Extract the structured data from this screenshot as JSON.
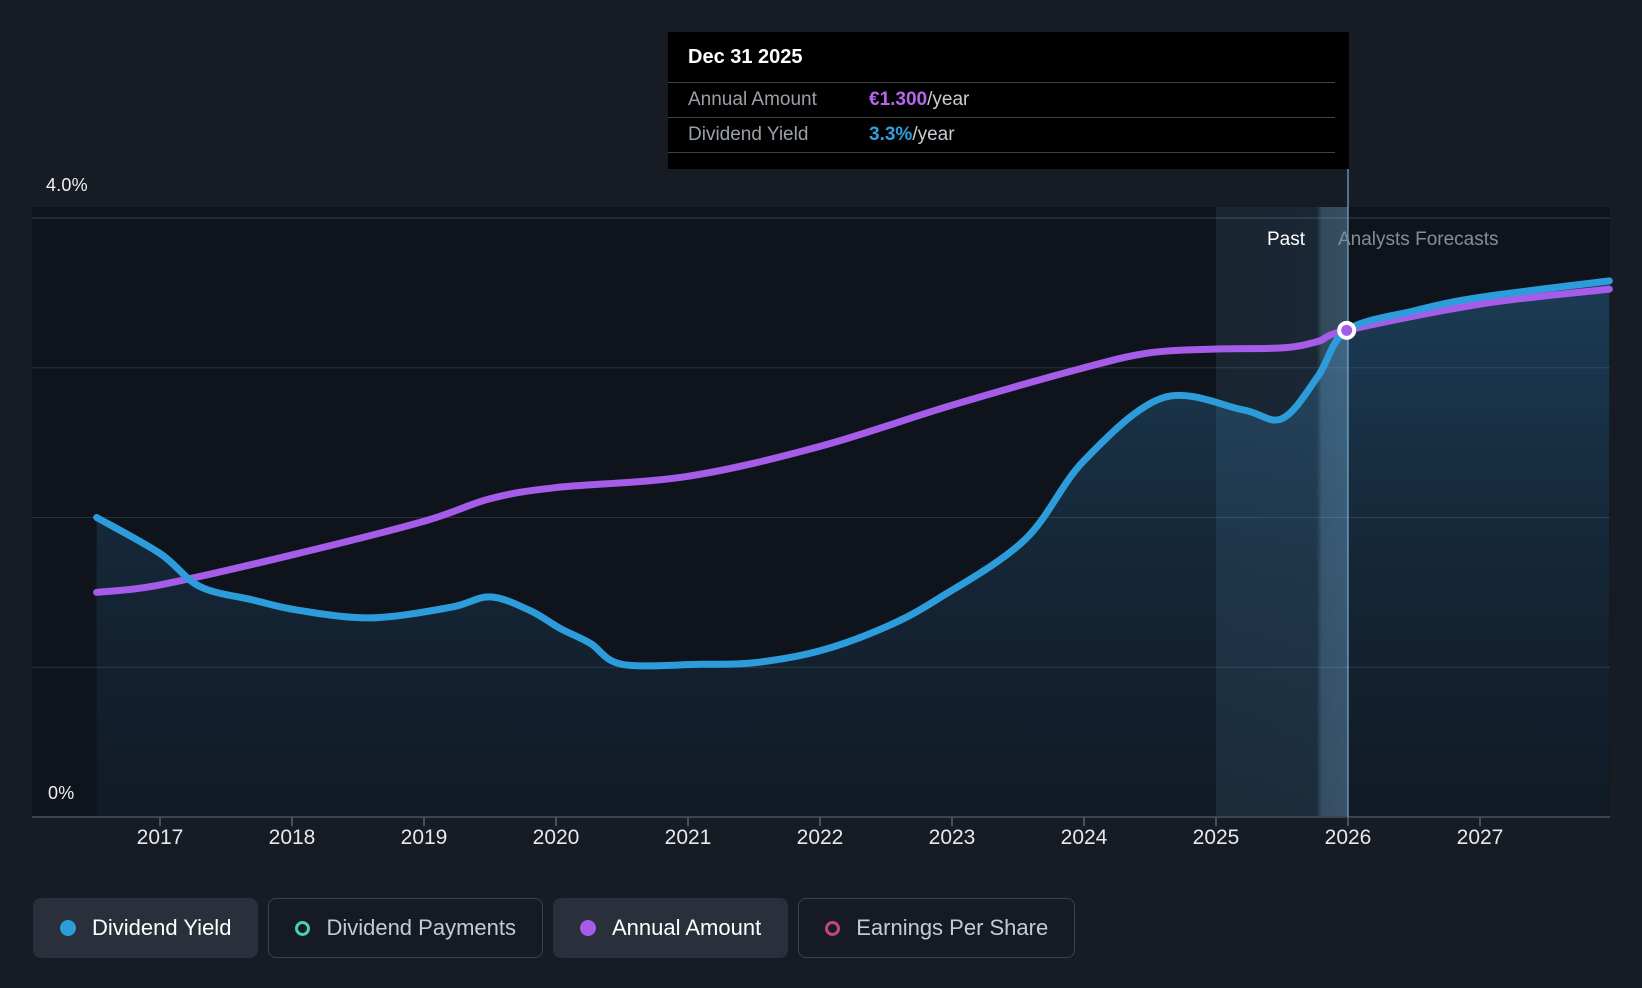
{
  "tooltip": {
    "date": "Dec 31 2025",
    "rows": [
      {
        "label": "Annual Amount",
        "value": "€1.300",
        "suffix": "/year",
        "color": "#B467EC"
      },
      {
        "label": "Dividend Yield",
        "value": "3.3%",
        "suffix": "/year",
        "color": "#2F9FE0"
      }
    ]
  },
  "axis_labels": {
    "y_top": "4.0%",
    "y_bottom": "0%"
  },
  "annotations": {
    "past": "Past",
    "forecast": "Analysts Forecasts"
  },
  "legend": [
    {
      "label": "Dividend Yield",
      "color": "#2D9CDB",
      "style": "filled",
      "active": true
    },
    {
      "label": "Dividend Payments",
      "color": "#4BCDB9",
      "style": "outline",
      "active": false
    },
    {
      "label": "Annual Amount",
      "color": "#A55CE8",
      "style": "filled",
      "active": true
    },
    {
      "label": "Earnings Per Share",
      "color": "#C2457E",
      "style": "outline",
      "active": false
    }
  ],
  "chart_data": {
    "type": "line",
    "title": "Dividend history and forecast",
    "x_domain": [
      2016.52,
      2027.98
    ],
    "x_tick_years": [
      2017,
      2018,
      2019,
      2020,
      2021,
      2022,
      2023,
      2024,
      2025,
      2026,
      2027
    ],
    "y_axis": {
      "unit": "%",
      "min": 0,
      "max": 4.0,
      "gridline_step": 1.0,
      "labeled_ticks": [
        "4.0%",
        "0%"
      ]
    },
    "forecast_divider_year": 2026.0,
    "highlight_band_years": [
      2025.0,
      2026.0
    ],
    "legend_position": "bottom",
    "grid": true,
    "series": [
      {
        "name": "Dividend Yield",
        "unit": "%",
        "color": "#2D9CDB",
        "area_fill": true,
        "points": [
          [
            2016.52,
            2.0
          ],
          [
            2017.0,
            1.76
          ],
          [
            2017.3,
            1.54
          ],
          [
            2017.7,
            1.45
          ],
          [
            2018.05,
            1.38
          ],
          [
            2018.6,
            1.33
          ],
          [
            2019.2,
            1.4
          ],
          [
            2019.5,
            1.47
          ],
          [
            2019.8,
            1.38
          ],
          [
            2020.03,
            1.26
          ],
          [
            2020.26,
            1.16
          ],
          [
            2020.5,
            1.02
          ],
          [
            2021.1,
            1.02
          ],
          [
            2021.5,
            1.03
          ],
          [
            2022.0,
            1.11
          ],
          [
            2022.5,
            1.27
          ],
          [
            2022.9,
            1.46
          ],
          [
            2023.55,
            1.85
          ],
          [
            2024.0,
            2.38
          ],
          [
            2024.6,
            2.8
          ],
          [
            2025.2,
            2.72
          ],
          [
            2025.5,
            2.66
          ],
          [
            2025.77,
            2.94
          ],
          [
            2025.99,
            3.25
          ],
          [
            2026.5,
            3.38
          ],
          [
            2027.0,
            3.47
          ],
          [
            2027.98,
            3.58
          ]
        ]
      },
      {
        "name": "Annual Amount",
        "unit": "EUR/year",
        "color": "#A55CE8",
        "area_fill": false,
        "pct_per_unit": 2.5,
        "points": [
          [
            2016.52,
            0.6
          ],
          [
            2017.0,
            0.62
          ],
          [
            2018.0,
            0.7
          ],
          [
            2019.0,
            0.79
          ],
          [
            2019.5,
            0.85
          ],
          [
            2020.0,
            0.88
          ],
          [
            2021.0,
            0.91
          ],
          [
            2022.0,
            0.99
          ],
          [
            2023.0,
            1.1
          ],
          [
            2024.0,
            1.2
          ],
          [
            2024.5,
            1.24
          ],
          [
            2025.0,
            1.25
          ],
          [
            2025.5,
            1.253
          ],
          [
            2025.77,
            1.27
          ],
          [
            2025.99,
            1.3
          ],
          [
            2027.0,
            1.37
          ],
          [
            2027.98,
            1.41
          ]
        ]
      }
    ],
    "marker": {
      "date": "Dec 31 2025",
      "year": 2025.99,
      "series": "Annual Amount",
      "annual_amount_eur": 1.3,
      "dividend_yield_pct": 3.3,
      "color": "#A55CE8"
    },
    "colors": {
      "page_bg": "#161B24",
      "plot_bg": "#0F141C",
      "gridline": "#2C323C",
      "gridline_top": "#3A404A",
      "axis_line": "#3E434C",
      "today_line": "#7FB8E0",
      "area_fill_base": "#3488C4",
      "band_base": "#64A5D2"
    }
  }
}
